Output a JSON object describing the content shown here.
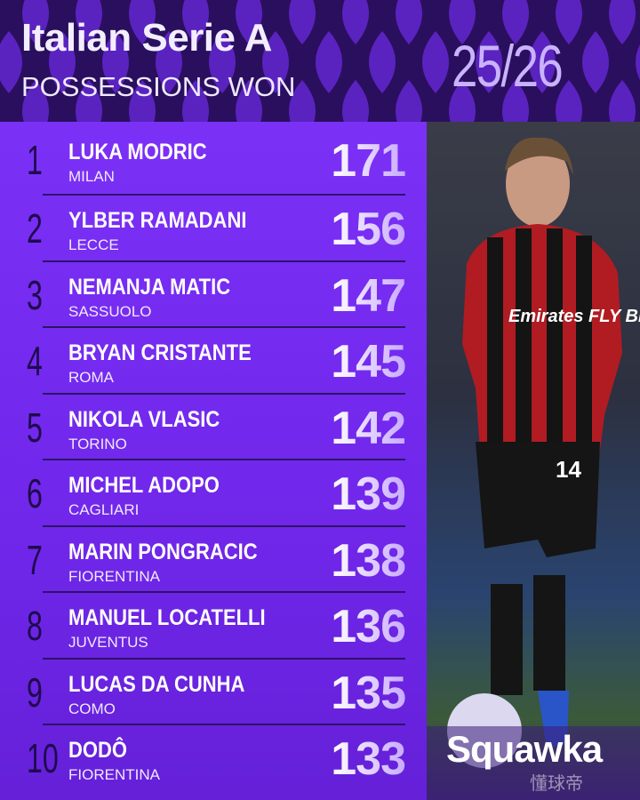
{
  "header": {
    "title": "Italian Serie A",
    "subtitle": "POSSESSIONS WON",
    "season": "25/26"
  },
  "rows": [
    {
      "rank": "1",
      "name": "LUKA MODRIC",
      "team": "MILAN",
      "value": "171"
    },
    {
      "rank": "2",
      "name": "YLBER RAMADANI",
      "team": "LECCE",
      "value": "156"
    },
    {
      "rank": "3",
      "name": "NEMANJA MATIC",
      "team": "SASSUOLO",
      "value": "147"
    },
    {
      "rank": "4",
      "name": "BRYAN CRISTANTE",
      "team": "ROMA",
      "value": "145"
    },
    {
      "rank": "5",
      "name": "NIKOLA VLASIC",
      "team": "TORINO",
      "value": "142"
    },
    {
      "rank": "6",
      "name": "MICHEL ADOPO",
      "team": "CAGLIARI",
      "value": "139"
    },
    {
      "rank": "7",
      "name": "MARIN PONGRACIC",
      "team": "FIORENTINA",
      "value": "138"
    },
    {
      "rank": "8",
      "name": "MANUEL LOCATELLI",
      "team": "JUVENTUS",
      "value": "136"
    },
    {
      "rank": "9",
      "name": "LUCAS DA CUNHA",
      "team": "COMO",
      "value": "135"
    },
    {
      "rank": "10",
      "name": "DODÔ",
      "team": "FIORENTINA",
      "value": "133"
    }
  ],
  "photo": {
    "shirt_sponsor": "Emirates FLY BETTER",
    "shirt_number": "14"
  },
  "brand": {
    "logo": "Squawka",
    "watermark": "懂球帝"
  },
  "colors": {
    "header_bg": "#2a0f5e",
    "table_bg": "#7b30f6",
    "rank": "#1f0a4d",
    "season": "#c9b3ff"
  }
}
